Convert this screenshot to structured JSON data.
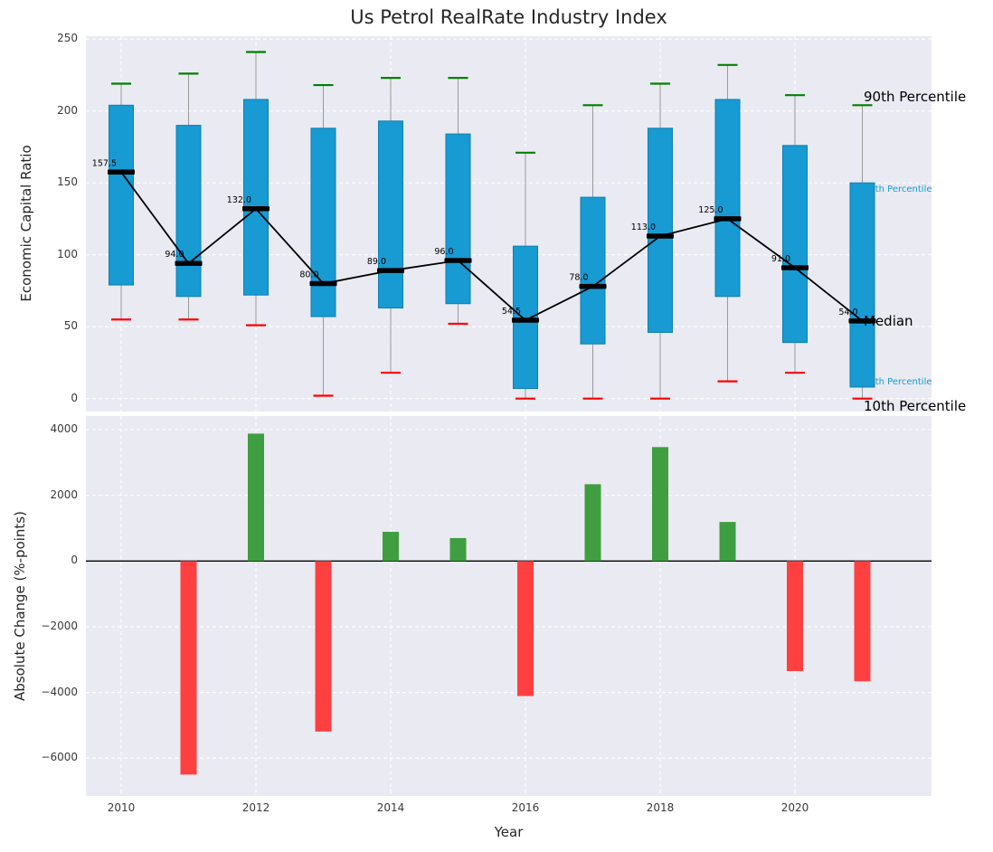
{
  "title": "Us Petrol RealRate Industry Index",
  "chart_data": [
    {
      "type": "boxplot",
      "title": "Us Petrol RealRate Industry Index",
      "ylabel": "Economic Capital Ratio",
      "ylim": [
        -9,
        252
      ],
      "yticks": [
        0,
        50,
        100,
        150,
        200,
        250
      ],
      "grid": true,
      "legend_position": "none",
      "years": [
        2010,
        2011,
        2012,
        2013,
        2014,
        2015,
        2016,
        2017,
        2018,
        2019,
        2020,
        2021
      ],
      "p10": [
        55,
        55,
        51,
        2,
        18,
        52,
        0,
        0,
        0,
        12,
        18,
        0
      ],
      "p25": [
        79,
        71,
        72,
        57,
        63,
        66,
        7,
        38,
        46,
        71,
        39,
        8
      ],
      "median": [
        157.5,
        94,
        132,
        80,
        89,
        96,
        54.5,
        78,
        113,
        125,
        91,
        54
      ],
      "p75": [
        204,
        190,
        208,
        188,
        193,
        184,
        106,
        140,
        188,
        208,
        176,
        150
      ],
      "p90": [
        219,
        226,
        241,
        218,
        223,
        223,
        171,
        204,
        219,
        232,
        211,
        204
      ],
      "colors": {
        "box": "#189ad3",
        "box_edge": "#0f7fb0",
        "p90_cap": "#008000",
        "p10_cap": "#ff0000",
        "median": "#000000",
        "whisker": "#9a9a9a",
        "grid": "#ffffff"
      },
      "annotations": [
        {
          "text": "90th Percentile",
          "value": 210,
          "color": "#000000",
          "size": 15,
          "layer": "front"
        },
        {
          "text": "75th Percentile",
          "value": 146,
          "color": "#189ad3",
          "size": 10,
          "layer": "back"
        },
        {
          "text": "Median",
          "value": 54,
          "color": "#000000",
          "size": 15,
          "layer": "front"
        },
        {
          "text": "25th Percentile",
          "value": 12,
          "color": "#189ad3",
          "size": 10,
          "layer": "back"
        },
        {
          "text": "10th Percentile",
          "value": -5,
          "color": "#000000",
          "size": 15,
          "layer": "front"
        }
      ]
    },
    {
      "type": "bar",
      "ylabel": "Absolute Change (%-points)",
      "xlabel": "Year",
      "ylim": [
        -7150,
        4415
      ],
      "yticks": [
        4000,
        2000,
        0,
        -2000,
        -4000,
        -6000
      ],
      "xticks": [
        2010,
        2012,
        2014,
        2016,
        2018,
        2020
      ],
      "years": [
        2010,
        2011,
        2012,
        2013,
        2014,
        2015,
        2016,
        2017,
        2018,
        2019,
        2020,
        2021
      ],
      "values": [
        null,
        -6500,
        3880,
        -5190,
        890,
        700,
        -4110,
        2340,
        3470,
        1190,
        -3350,
        -3660
      ],
      "colors": {
        "positive": "#3f9e3f",
        "negative": "#ff4040",
        "zero_line": "#000000",
        "grid": "#ffffff"
      }
    }
  ]
}
